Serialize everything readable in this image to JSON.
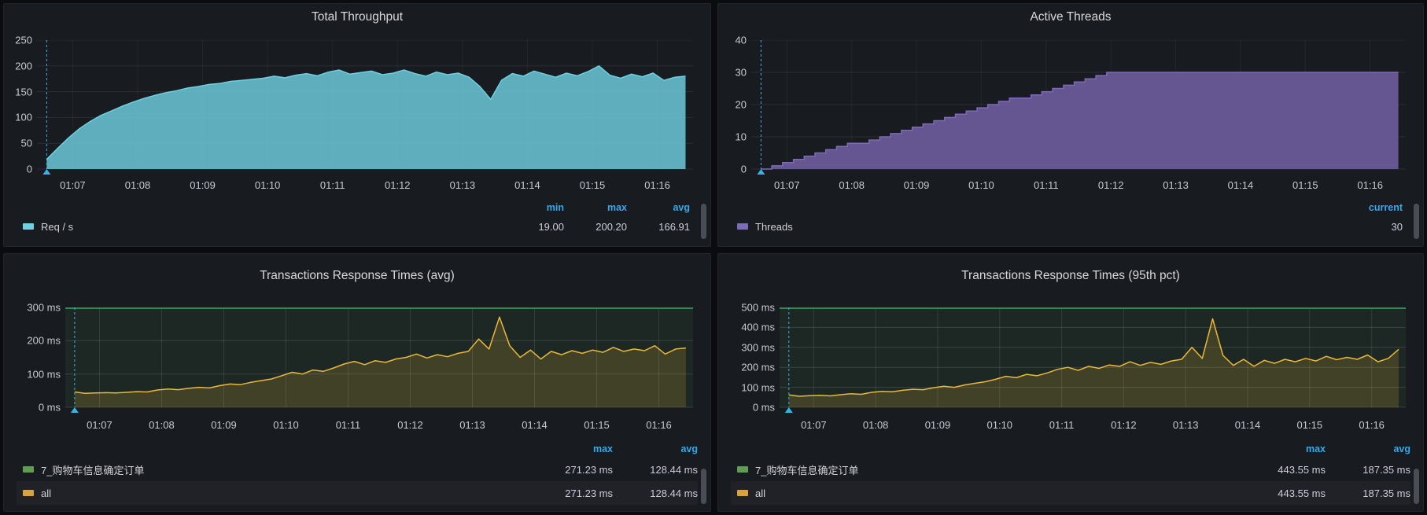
{
  "colors": {
    "page_background": "#0b0c0f",
    "panel_background": "#181b1f",
    "stat_header_blue": "#38a8e8",
    "annotation_cyan": "#33b5e5",
    "series_teal": "#6ed0e0",
    "series_purple": "#7e6bb5",
    "series_green": "#5f9e52",
    "series_yellow": "#eab839"
  },
  "panels": [
    {
      "title": "Total Throughput",
      "legend": {
        "headers": [
          "min",
          "max",
          "avg"
        ],
        "rows": [
          {
            "label": "Req / s",
            "series_color": "#6ed0e0",
            "values": [
              "19.00",
              "200.20",
              "166.91"
            ]
          }
        ]
      }
    },
    {
      "title": "Active Threads",
      "legend": {
        "headers": [
          "current"
        ],
        "rows": [
          {
            "label": "Threads",
            "series_color": "#7e6bb5",
            "values": [
              "30"
            ]
          }
        ]
      }
    },
    {
      "title": "Transactions Response Times (avg)",
      "legend": {
        "headers": [
          "max",
          "avg"
        ],
        "rows": [
          {
            "label": "7_购物车信息确定订单",
            "series_color": "#5f9e52",
            "values": [
              "271.23 ms",
              "128.44 ms"
            ]
          },
          {
            "label": "all",
            "series_color": "#eab839",
            "values": [
              "271.23 ms",
              "128.44 ms"
            ],
            "highlighted": true
          }
        ]
      }
    },
    {
      "title": "Transactions Response Times (95th pct)",
      "legend": {
        "headers": [
          "max",
          "avg"
        ],
        "rows": [
          {
            "label": "7_购物车信息确定订单",
            "series_color": "#5f9e52",
            "values": [
              "443.55 ms",
              "187.35 ms"
            ]
          },
          {
            "label": "all",
            "series_color": "#eab839",
            "values": [
              "443.55 ms",
              "187.35 ms"
            ],
            "highlighted": true
          }
        ]
      }
    }
  ],
  "time_axis": {
    "xlim": [
      66.45,
      76.55
    ],
    "unit": "minutes since 00:00 (HH:MM clock labels)",
    "ticks": [
      {
        "t": 67,
        "label": "01:07"
      },
      {
        "t": 68,
        "label": "01:08"
      },
      {
        "t": 69,
        "label": "01:09"
      },
      {
        "t": 70,
        "label": "01:10"
      },
      {
        "t": 71,
        "label": "01:11"
      },
      {
        "t": 72,
        "label": "01:12"
      },
      {
        "t": 73,
        "label": "01:13"
      },
      {
        "t": 74,
        "label": "01:14"
      },
      {
        "t": 75,
        "label": "01:15"
      },
      {
        "t": 76,
        "label": "01:16"
      }
    ]
  },
  "chart_data": [
    {
      "panel": "Total Throughput",
      "type": "area",
      "kind": "area",
      "ylim": [
        0,
        250
      ],
      "y_ticks": [
        "250",
        "200",
        "150",
        "100",
        "50",
        "0"
      ],
      "t0": 66.6,
      "dt": 0.1667,
      "annotation_t": 66.6,
      "grid": true,
      "legend_position": "bottom",
      "series": [
        {
          "name": "Req / s",
          "color": "#6ed0e0",
          "fill": "rgba(110,208,224,0.82)",
          "values": [
            19,
            40,
            60,
            78,
            92,
            104,
            113,
            122,
            130,
            137,
            143,
            148,
            152,
            157,
            160,
            164,
            166,
            170,
            172,
            174,
            176,
            180,
            177,
            182,
            185,
            181,
            188,
            192,
            184,
            187,
            190,
            183,
            186,
            192,
            185,
            180,
            188,
            183,
            186,
            178,
            160,
            135,
            172,
            185,
            180,
            190,
            184,
            178,
            186,
            181,
            189,
            200,
            182,
            176,
            184,
            179,
            186,
            172,
            178,
            180
          ]
        }
      ],
      "stats": {
        "min": 19.0,
        "max": 200.2,
        "avg": 166.91
      }
    },
    {
      "panel": "Active Threads",
      "type": "area",
      "kind": "step",
      "ylim": [
        0,
        40
      ],
      "y_ticks": [
        "40",
        "30",
        "20",
        "10",
        "0"
      ],
      "t0": 66.6,
      "dt": 0.1667,
      "annotation_t": 66.6,
      "grid": true,
      "legend_position": "bottom",
      "series": [
        {
          "name": "Threads",
          "color": "#7e6bb5",
          "fill": "rgba(112,93,160,0.88)",
          "values": [
            0,
            1,
            2,
            3,
            4,
            5,
            6,
            7,
            8,
            8,
            9,
            10,
            11,
            12,
            13,
            14,
            15,
            16,
            17,
            18,
            19,
            20,
            21,
            22,
            22,
            23,
            24,
            25,
            26,
            27,
            28,
            29,
            30,
            30,
            30,
            30,
            30,
            30,
            30,
            30,
            30,
            30,
            30,
            30,
            30,
            30,
            30,
            30,
            30,
            30,
            30,
            30,
            30,
            30,
            30,
            30,
            30,
            30,
            30,
            30
          ]
        }
      ],
      "stats": {
        "current": 30
      }
    },
    {
      "panel": "Transactions Response Times (avg)",
      "type": "line",
      "kind": "resp",
      "ylim": [
        0,
        300
      ],
      "y_ticks": [
        "300 ms",
        "200 ms",
        "100 ms",
        "0 ms"
      ],
      "t0": 66.6,
      "dt": 0.1667,
      "annotation_t": 66.6,
      "grid": true,
      "bg_fill": "rgba(63,142,79,0.12)",
      "legend_position": "bottom",
      "series": [
        {
          "name": "7_购物车信息确定订单",
          "color": "#2f8b4f",
          "render_note": "drawn as flat line at axis top with translucent green fill covering plot",
          "values": [
            46,
            42,
            43,
            44,
            43,
            45,
            47,
            46,
            52,
            55,
            53,
            57,
            60,
            58,
            65,
            70,
            68,
            75,
            80,
            85,
            95,
            105,
            100,
            112,
            108,
            118,
            130,
            138,
            128,
            140,
            135,
            145,
            150,
            160,
            148,
            158,
            152,
            162,
            168,
            205,
            175,
            271,
            185,
            150,
            172,
            145,
            168,
            158,
            170,
            162,
            172,
            165,
            180,
            168,
            175,
            170,
            185,
            160,
            175,
            178
          ]
        },
        {
          "name": "all",
          "color": "#eab839",
          "fill": "rgba(234,184,57,0.18)",
          "values": [
            46,
            42,
            43,
            44,
            43,
            45,
            47,
            46,
            52,
            55,
            53,
            57,
            60,
            58,
            65,
            70,
            68,
            75,
            80,
            85,
            95,
            105,
            100,
            112,
            108,
            118,
            130,
            138,
            128,
            140,
            135,
            145,
            150,
            160,
            148,
            158,
            152,
            162,
            168,
            205,
            175,
            271,
            185,
            150,
            172,
            145,
            168,
            158,
            170,
            162,
            172,
            165,
            180,
            168,
            175,
            170,
            185,
            160,
            175,
            178
          ]
        }
      ],
      "stats": {
        "max_ms": 271.23,
        "avg_ms": 128.44
      }
    },
    {
      "panel": "Transactions Response Times (95th pct)",
      "type": "line",
      "kind": "resp",
      "ylim": [
        0,
        500
      ],
      "y_ticks": [
        "500 ms",
        "400 ms",
        "300 ms",
        "200 ms",
        "100 ms",
        "0 ms"
      ],
      "t0": 66.6,
      "dt": 0.1667,
      "annotation_t": 66.6,
      "grid": true,
      "bg_fill": "rgba(63,142,79,0.12)",
      "legend_position": "bottom",
      "series": [
        {
          "name": "7_购物车信息确定订单",
          "color": "#2f8b4f",
          "render_note": "drawn as flat line at axis top with translucent green fill covering plot",
          "values": [
            62,
            55,
            58,
            60,
            57,
            63,
            68,
            65,
            75,
            80,
            78,
            85,
            90,
            88,
            98,
            105,
            100,
            112,
            120,
            128,
            140,
            155,
            148,
            165,
            158,
            172,
            190,
            200,
            185,
            205,
            195,
            212,
            205,
            228,
            210,
            225,
            215,
            232,
            240,
            300,
            245,
            443,
            260,
            210,
            240,
            205,
            235,
            220,
            240,
            228,
            245,
            232,
            255,
            238,
            250,
            240,
            262,
            228,
            245,
            290
          ]
        },
        {
          "name": "all",
          "color": "#eab839",
          "fill": "rgba(234,184,57,0.18)",
          "values": [
            62,
            55,
            58,
            60,
            57,
            63,
            68,
            65,
            75,
            80,
            78,
            85,
            90,
            88,
            98,
            105,
            100,
            112,
            120,
            128,
            140,
            155,
            148,
            165,
            158,
            172,
            190,
            200,
            185,
            205,
            195,
            212,
            205,
            228,
            210,
            225,
            215,
            232,
            240,
            300,
            245,
            443,
            260,
            210,
            240,
            205,
            235,
            220,
            240,
            228,
            245,
            232,
            255,
            238,
            250,
            240,
            262,
            228,
            245,
            290
          ]
        }
      ],
      "stats": {
        "max_ms": 443.55,
        "avg_ms": 187.35
      }
    }
  ]
}
